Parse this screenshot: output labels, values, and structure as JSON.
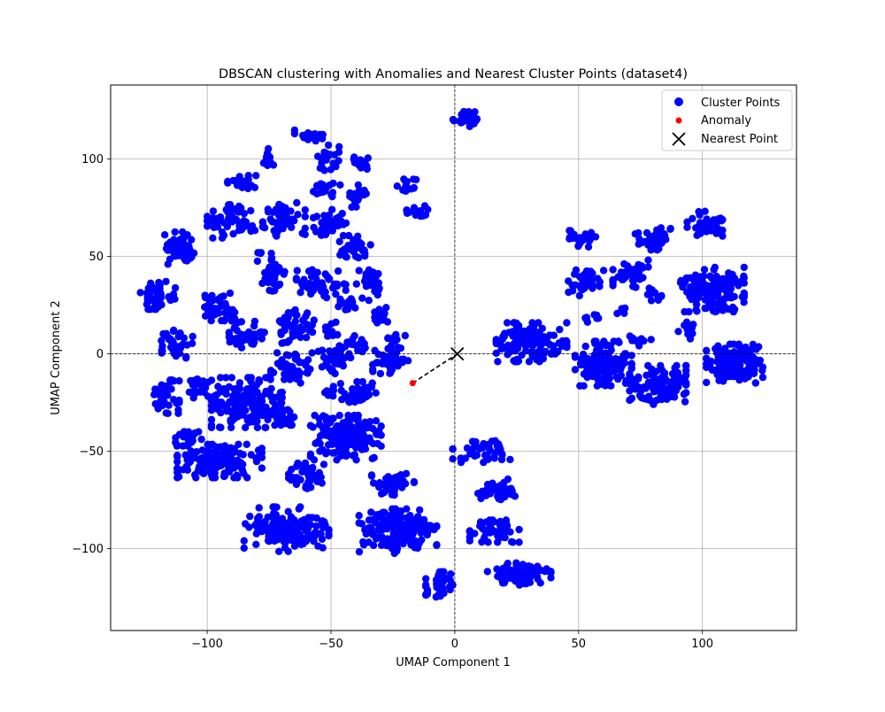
{
  "chart_data": {
    "type": "scatter",
    "title": "DBSCAN clustering with Anomalies and Nearest Cluster Points (dataset4)",
    "xlabel": "UMAP Component 1",
    "ylabel": "UMAP Component 2",
    "xlim": [
      -139,
      138
    ],
    "ylim": [
      -142,
      138
    ],
    "xticks": [
      -100,
      -50,
      0,
      50,
      100
    ],
    "xtick_labels": [
      "−100",
      "−50",
      "0",
      "50",
      "100"
    ],
    "yticks": [
      -100,
      -50,
      0,
      50,
      100
    ],
    "ytick_labels": [
      "−100",
      "−50",
      "0",
      "50",
      "100"
    ],
    "grid": true,
    "reference_lines": {
      "x": 0,
      "y": 0,
      "style": "dashed",
      "color": "#000000"
    },
    "legend": {
      "placement": "upper-right",
      "entries": [
        {
          "label": "Cluster Points",
          "marker": "circle",
          "color": "#0000ff"
        },
        {
          "label": "Anomaly",
          "marker": "small-circle",
          "color": "#ff0000"
        },
        {
          "label": "Nearest Point",
          "marker": "x",
          "color": "#000000"
        }
      ]
    },
    "colors": {
      "cluster": "#0000ff",
      "anomaly": "#ff0000",
      "nearest": "#000000"
    },
    "clusters": [
      {
        "cx": 5,
        "cy": 121,
        "sx": 4,
        "sy": 3,
        "n": 30
      },
      {
        "cx": -59,
        "cy": 112,
        "sx": 4,
        "sy": 2,
        "n": 20
      },
      {
        "cx": -51,
        "cy": 100,
        "sx": 3,
        "sy": 5,
        "n": 25
      },
      {
        "cx": -38,
        "cy": 98,
        "sx": 3,
        "sy": 3,
        "n": 20
      },
      {
        "cx": -76,
        "cy": 101,
        "sx": 2,
        "sy": 3,
        "n": 12
      },
      {
        "cx": -86,
        "cy": 88,
        "sx": 4,
        "sy": 3,
        "n": 20
      },
      {
        "cx": -52,
        "cy": 85,
        "sx": 4,
        "sy": 3,
        "n": 20
      },
      {
        "cx": -39,
        "cy": 81,
        "sx": 3,
        "sy": 4,
        "n": 20
      },
      {
        "cx": -19,
        "cy": 87,
        "sx": 3,
        "sy": 3,
        "n": 15
      },
      {
        "cx": -16,
        "cy": 73,
        "sx": 4,
        "sy": 3,
        "n": 15
      },
      {
        "cx": -90,
        "cy": 68,
        "sx": 7,
        "sy": 6,
        "n": 60
      },
      {
        "cx": -69,
        "cy": 69,
        "sx": 6,
        "sy": 6,
        "n": 55
      },
      {
        "cx": -50,
        "cy": 67,
        "sx": 5,
        "sy": 5,
        "n": 40
      },
      {
        "cx": -41,
        "cy": 55,
        "sx": 5,
        "sy": 4,
        "n": 35
      },
      {
        "cx": -110,
        "cy": 54,
        "sx": 5,
        "sy": 6,
        "n": 45
      },
      {
        "cx": -74,
        "cy": 42,
        "sx": 4,
        "sy": 7,
        "n": 45
      },
      {
        "cx": -54,
        "cy": 36,
        "sx": 7,
        "sy": 5,
        "n": 50
      },
      {
        "cx": -34,
        "cy": 36,
        "sx": 4,
        "sy": 6,
        "n": 35
      },
      {
        "cx": -120,
        "cy": 30,
        "sx": 5,
        "sy": 5,
        "n": 40
      },
      {
        "cx": -96,
        "cy": 24,
        "sx": 5,
        "sy": 5,
        "n": 40
      },
      {
        "cx": -43,
        "cy": 24,
        "sx": 3,
        "sy": 3,
        "n": 15
      },
      {
        "cx": -30,
        "cy": 20,
        "sx": 2,
        "sy": 4,
        "n": 15
      },
      {
        "cx": -64,
        "cy": 14,
        "sx": 5,
        "sy": 6,
        "n": 45
      },
      {
        "cx": -84,
        "cy": 10,
        "sx": 5,
        "sy": 5,
        "n": 45
      },
      {
        "cx": -50,
        "cy": 12,
        "sx": 3,
        "sy": 3,
        "n": 12
      },
      {
        "cx": -113,
        "cy": 5,
        "sx": 5,
        "sy": 5,
        "n": 40
      },
      {
        "cx": -40,
        "cy": 5,
        "sx": 3,
        "sy": 3,
        "n": 15
      },
      {
        "cx": -24,
        "cy": 7,
        "sx": 4,
        "sy": 3,
        "n": 15
      },
      {
        "cx": -48,
        "cy": -3,
        "sx": 5,
        "sy": 5,
        "n": 40
      },
      {
        "cx": -26,
        "cy": -3,
        "sx": 5,
        "sy": 5,
        "n": 40
      },
      {
        "cx": -66,
        "cy": -8,
        "sx": 6,
        "sy": 6,
        "n": 50
      },
      {
        "cx": -117,
        "cy": -22,
        "sx": 4,
        "sy": 6,
        "n": 40
      },
      {
        "cx": -104,
        "cy": -18,
        "sx": 3,
        "sy": 5,
        "n": 25
      },
      {
        "cx": -84,
        "cy": -25,
        "sx": 10,
        "sy": 9,
        "n": 160
      },
      {
        "cx": -67,
        "cy": -33,
        "sx": 4,
        "sy": 3,
        "n": 25
      },
      {
        "cx": -51,
        "cy": -20,
        "sx": 2,
        "sy": 3,
        "n": 10
      },
      {
        "cx": -39,
        "cy": -20,
        "sx": 5,
        "sy": 4,
        "n": 35
      },
      {
        "cx": -44,
        "cy": -43,
        "sx": 10,
        "sy": 8,
        "n": 160
      },
      {
        "cx": -108,
        "cy": -43,
        "sx": 4,
        "sy": 3,
        "n": 25
      },
      {
        "cx": -95,
        "cy": -55,
        "sx": 12,
        "sy": 6,
        "n": 140
      },
      {
        "cx": -60,
        "cy": -62,
        "sx": 5,
        "sy": 5,
        "n": 40
      },
      {
        "cx": -25,
        "cy": -67,
        "sx": 6,
        "sy": 4,
        "n": 45
      },
      {
        "cx": -68,
        "cy": -90,
        "sx": 12,
        "sy": 8,
        "n": 150
      },
      {
        "cx": -23,
        "cy": -91,
        "sx": 11,
        "sy": 8,
        "n": 160
      },
      {
        "cx": 12,
        "cy": -50,
        "sx": 9,
        "sy": 4,
        "n": 45
      },
      {
        "cx": 17,
        "cy": -70,
        "sx": 6,
        "sy": 4,
        "n": 40
      },
      {
        "cx": 16,
        "cy": -91,
        "sx": 7,
        "sy": 4,
        "n": 45
      },
      {
        "cx": 26,
        "cy": -113,
        "sx": 9,
        "sy": 4,
        "n": 70
      },
      {
        "cx": -6,
        "cy": -119,
        "sx": 4,
        "sy": 5,
        "n": 40
      },
      {
        "cx": 31,
        "cy": 6,
        "sx": 10,
        "sy": 7,
        "n": 140
      },
      {
        "cx": 60,
        "cy": -5,
        "sx": 8,
        "sy": 8,
        "n": 130
      },
      {
        "cx": 52,
        "cy": 59,
        "sx": 4,
        "sy": 3,
        "n": 25
      },
      {
        "cx": 53,
        "cy": 37,
        "sx": 5,
        "sy": 5,
        "n": 35
      },
      {
        "cx": 71,
        "cy": 41,
        "sx": 5,
        "sy": 5,
        "n": 40
      },
      {
        "cx": 80,
        "cy": 59,
        "sx": 5,
        "sy": 4,
        "n": 35
      },
      {
        "cx": 101,
        "cy": 66,
        "sx": 5,
        "sy": 5,
        "n": 40
      },
      {
        "cx": 104,
        "cy": 33,
        "sx": 9,
        "sy": 8,
        "n": 140
      },
      {
        "cx": 113,
        "cy": -5,
        "sx": 8,
        "sy": 7,
        "n": 140
      },
      {
        "cx": 82,
        "cy": -16,
        "sx": 8,
        "sy": 7,
        "n": 110
      },
      {
        "cx": 80,
        "cy": 30,
        "sx": 3,
        "sy": 3,
        "n": 10
      },
      {
        "cx": 93,
        "cy": 12,
        "sx": 3,
        "sy": 3,
        "n": 10
      },
      {
        "cx": 75,
        "cy": 7,
        "sx": 3,
        "sy": 2,
        "n": 10
      },
      {
        "cx": 55,
        "cy": 19,
        "sx": 3,
        "sy": 2,
        "n": 8
      },
      {
        "cx": 67,
        "cy": 21,
        "sx": 2,
        "sy": 2,
        "n": 5
      }
    ],
    "anomalies": [
      {
        "x": -17,
        "y": -15
      }
    ],
    "nearest_points": [
      {
        "x": 1,
        "y": 0
      }
    ]
  }
}
